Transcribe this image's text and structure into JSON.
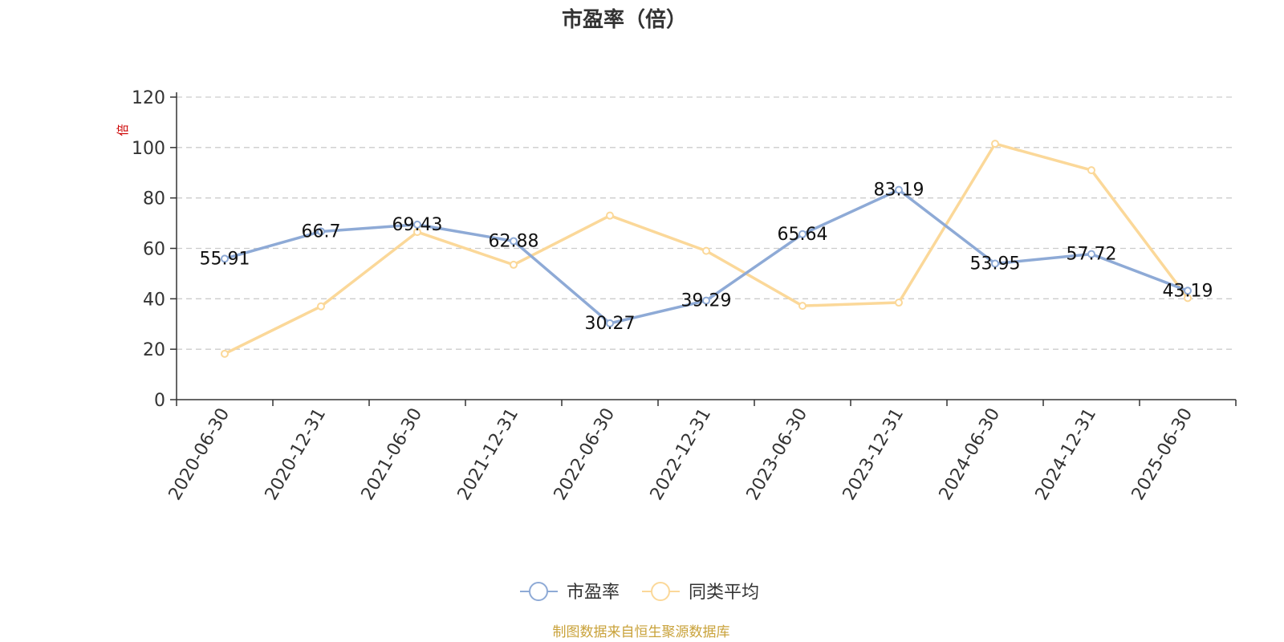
{
  "chart_data": {
    "type": "line",
    "title": "市盈率（倍）",
    "ylabel": "倍",
    "ylim": [
      0,
      120
    ],
    "yticks": [
      0,
      20,
      40,
      60,
      80,
      100,
      120
    ],
    "grid": true,
    "legend_position": "bottom-center",
    "categories": [
      "2020-06-30",
      "2020-12-31",
      "2021-06-30",
      "2021-12-31",
      "2022-06-30",
      "2022-12-31",
      "2023-06-30",
      "2023-12-31",
      "2024-06-30",
      "2024-12-31",
      "2025-06-30"
    ],
    "series": [
      {
        "name": "市盈率",
        "color": "#8eaad6",
        "values": [
          55.91,
          66.7,
          69.43,
          62.88,
          30.27,
          39.29,
          65.64,
          83.19,
          53.95,
          57.72,
          43.19
        ],
        "data_labels": [
          "55.91",
          "66.7",
          "69.43",
          "62.88",
          "30.27",
          "39.29",
          "65.64",
          "83.19",
          "53.95",
          "57.72",
          "43.19"
        ]
      },
      {
        "name": "同类平均",
        "color": "#fbd899",
        "values": [
          18.2,
          37.0,
          66.5,
          53.5,
          73.0,
          59.0,
          37.2,
          38.5,
          101.5,
          91.0,
          40.3
        ]
      }
    ],
    "unit_color": "#cc0000"
  },
  "source": {
    "text": "制图数据来自恒生聚源数据库",
    "color": "#c9a23a"
  }
}
